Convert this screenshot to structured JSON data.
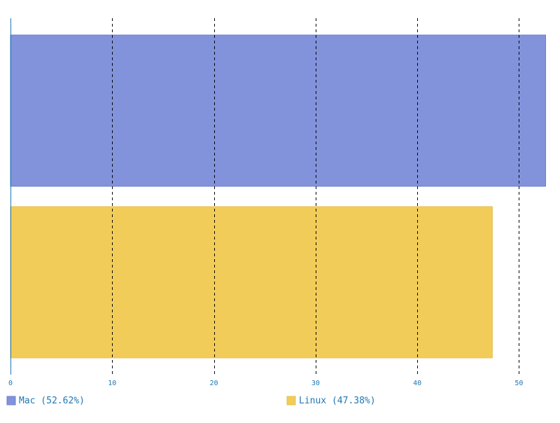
{
  "chart_data": {
    "type": "bar",
    "orientation": "horizontal",
    "title": "",
    "xlabel": "",
    "ylabel": "",
    "xlim": [
      0,
      53
    ],
    "xticks": [
      0,
      10,
      20,
      30,
      40,
      50
    ],
    "grid": true,
    "legend_position": "bottom",
    "series": [
      {
        "label": "Mac (52.62%)",
        "value": 52.62,
        "color": "#8293db",
        "stroke": "#6b7fd1"
      },
      {
        "label": "Linux (47.38%)",
        "value": 47.38,
        "color": "#f2cc58",
        "stroke": "#e6c050"
      }
    ],
    "colors": {
      "axis": "#1f77b4",
      "tick_label": "#1f77b4",
      "grid": "#000000",
      "legend_text": "#1f77b4"
    }
  }
}
